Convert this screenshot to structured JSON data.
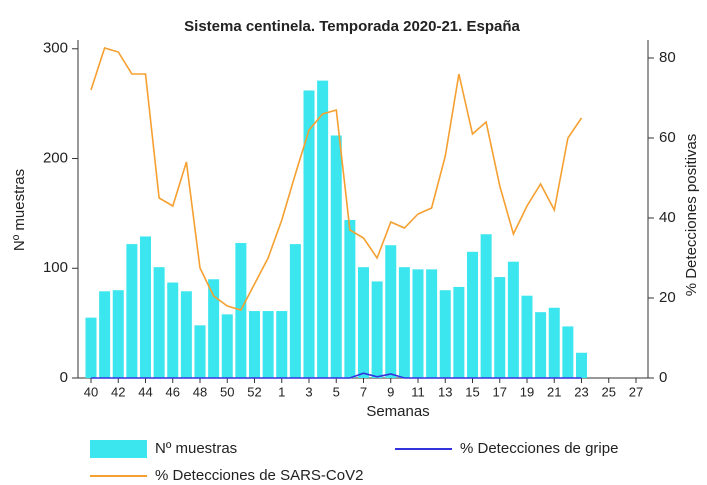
{
  "chart_data": {
    "type": "bar_line",
    "title": "Sistema centinela. Temporada 2020-21. España",
    "x_label": "Semanas",
    "y_label": "Nº muestras",
    "y2_label": "% Detecciones positivas",
    "categories": [
      "40",
      null,
      "42",
      null,
      "44",
      null,
      "46",
      null,
      "48",
      null,
      "50",
      null,
      "52",
      null,
      "1",
      null,
      "3",
      null,
      "5",
      null,
      "7",
      null,
      "9",
      null,
      "11",
      null,
      "13",
      null,
      "15",
      null,
      "17",
      null,
      "19",
      null,
      "21",
      null,
      "23",
      null,
      "25",
      null,
      "27"
    ],
    "series": [
      {
        "name": "Nº muestras",
        "type": "bar",
        "color": "#3ce6ee",
        "axis": "y",
        "values": [
          55,
          79,
          80,
          122,
          129,
          101,
          87,
          79,
          48,
          90,
          58,
          123,
          61,
          61,
          61,
          122,
          262,
          271,
          221,
          144,
          101,
          88,
          121,
          101,
          99,
          99,
          80,
          83,
          115,
          131,
          92,
          106,
          75,
          60,
          64,
          47,
          23,
          null,
          null,
          null,
          null
        ]
      },
      {
        "name": "% Detecciones de gripe",
        "type": "line",
        "color": "#3333dd",
        "axis": "y2",
        "values": [
          0,
          0,
          0,
          0,
          0,
          0,
          0,
          0,
          0,
          0,
          0,
          0,
          0,
          0,
          0,
          0,
          0,
          0,
          0,
          0,
          1.2,
          0.3,
          1,
          0,
          0,
          0,
          0,
          0,
          0,
          0,
          0,
          0,
          0,
          0,
          0,
          0,
          0,
          null,
          null,
          null,
          null
        ]
      },
      {
        "name": "% Detecciones de SARS-CoV2",
        "type": "line",
        "color": "#f5a030",
        "axis": "y2",
        "values": [
          72,
          82.5,
          81.5,
          76,
          76,
          45,
          43,
          54,
          27.5,
          20.5,
          18,
          17,
          23.5,
          30,
          39.5,
          51,
          62,
          66,
          67,
          37,
          35,
          30,
          39,
          37.5,
          41,
          42.5,
          55.5,
          76,
          61,
          64,
          48,
          36,
          43,
          48.5,
          42,
          60,
          65,
          null,
          null,
          null,
          null
        ]
      }
    ],
    "ylim": [
      0,
      308
    ],
    "yticks": [
      0,
      100,
      200,
      300
    ],
    "y2lim": [
      0,
      84.5
    ],
    "y2ticks": [
      0,
      20,
      40,
      60,
      80
    ],
    "legend": "bottom"
  }
}
